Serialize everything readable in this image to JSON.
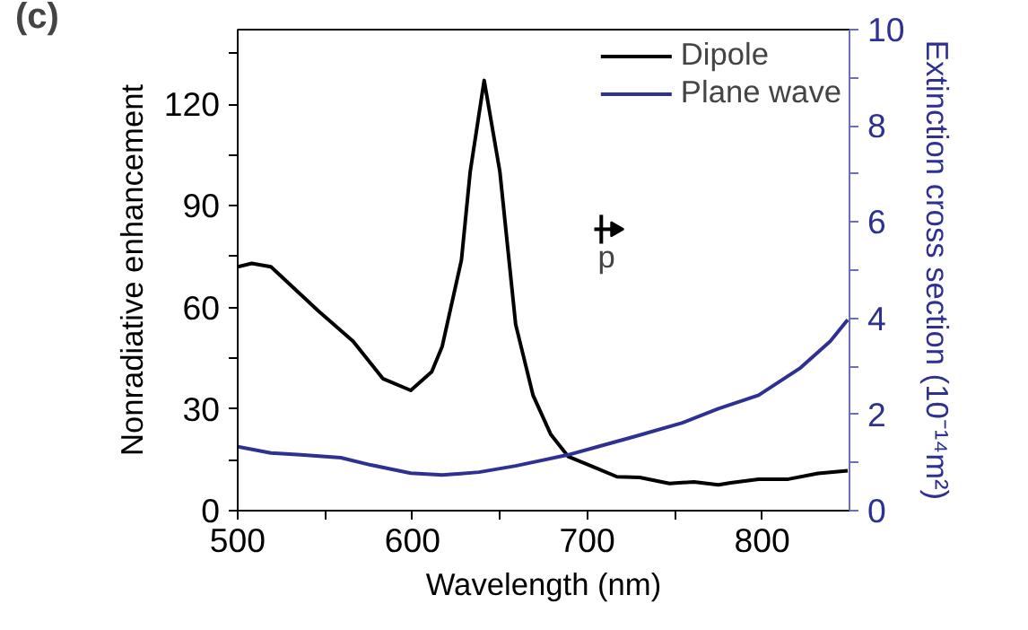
{
  "chart_data": {
    "type": "line",
    "xlabel": "Wavelength (nm)",
    "ylabel": "Nonradiative enhancement",
    "y2label": "Extinction cross section (10⁻¹⁴m²)",
    "xlim": [
      500,
      850
    ],
    "xticks": [
      500,
      {
        "value": 550,
        "label": null
      },
      600,
      {
        "value": 650,
        "label": null
      },
      700,
      {
        "value": 750,
        "label": null
      },
      800
    ],
    "ylim": [
      0,
      142
    ],
    "yticks": [
      0,
      {
        "value": 15,
        "label": null
      },
      30,
      {
        "value": 45,
        "label": null
      },
      60,
      {
        "value": 75,
        "label": null
      },
      90,
      {
        "value": 105,
        "label": null
      },
      120,
      {
        "value": 135,
        "label": null
      }
    ],
    "y2lim": [
      0,
      10
    ],
    "y2ticks": [
      0,
      {
        "value": 1,
        "label": null
      },
      2,
      {
        "value": 3,
        "label": null
      },
      4,
      {
        "value": 5,
        "label": null
      },
      6,
      {
        "value": 7,
        "label": null
      },
      8,
      {
        "value": 9,
        "label": null
      },
      10
    ],
    "legend": "top right",
    "grid": false,
    "line_style": "solid",
    "annotations": [
      "(c)",
      "p"
    ],
    "series": [
      {
        "name": "Dipole",
        "color": "#000000",
        "x": [
          500,
          508,
          519,
          546,
          566,
          583,
          599,
          611,
          617,
          628,
          633,
          641,
          650,
          659,
          669,
          679,
          689,
          703,
          717,
          730,
          747,
          761,
          775,
          782,
          798,
          815,
          832,
          849
        ],
        "values": [
          72,
          73,
          72,
          59,
          50,
          39,
          35.5,
          41,
          48.5,
          74,
          100,
          127,
          100,
          55,
          34,
          22.6,
          16,
          13,
          10,
          9.8,
          8,
          8.5,
          7.6,
          8.2,
          9.3,
          9.3,
          11,
          11.8
        ]
      },
      {
        "name": "Plane wave",
        "color": "#2e3192",
        "axis": "y2",
        "x": [
          500,
          519,
          536,
          559,
          576,
          599,
          617,
          638,
          659,
          689,
          706,
          726,
          754,
          775,
          798,
          822,
          839,
          849
        ],
        "values": [
          1.33,
          1.2,
          1.16,
          1.1,
          0.95,
          0.78,
          0.74,
          0.8,
          0.93,
          1.16,
          1.33,
          1.53,
          1.82,
          2.12,
          2.4,
          2.97,
          3.52,
          3.97
        ]
      }
    ]
  }
}
